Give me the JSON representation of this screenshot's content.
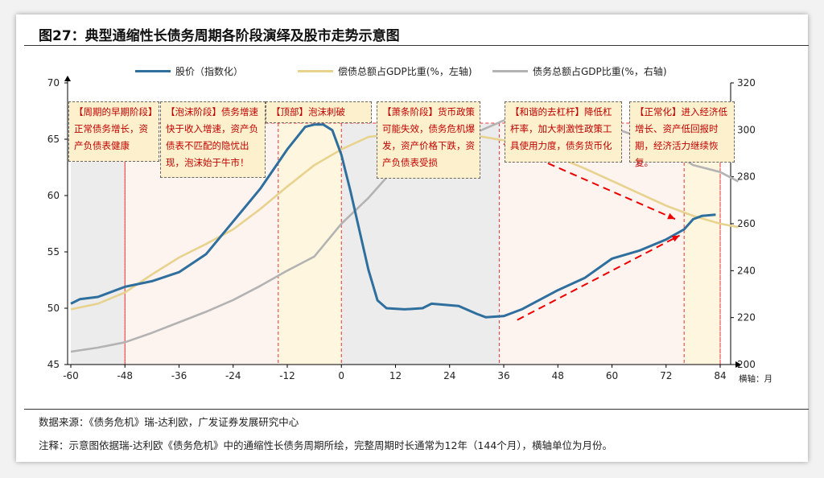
{
  "title": "图27：典型通缩性长债务周期各阶段演绎及股市走势示意图",
  "source": "数据来源：《债务危机》瑞-达利欧，广发证券发展研究中心",
  "note": "注释：示意图依据瑞-达利欧《债务危机》中的通缩性长债务周期所绘，完整周期时长通常为12年（144个月），横轴单位为月份。",
  "annotations": [
    "【周期的早期阶段】正常债务增长，资产负债表健康",
    "【泡沫阶段】债务增速快于收入增速，资产负债表不匹配的隐忧出现，泡沫始于牛市！",
    "【顶部】泡沫刺破",
    "【萧条阶段】货币政策可能失效，债务危机爆发，资产价格下跌，资产负债表受损",
    "【和谐的去杠杆】降低杠杆率，加大刺激性政策工具使用力度，债务货币化",
    "【正常化】进入经济低增长、资产低回报时期，经济活力继续恢复。"
  ],
  "chart_data": {
    "type": "line",
    "title": "",
    "xlabel": "横轴：月",
    "x_ticks": [
      -60,
      -48,
      -36,
      -24,
      -12,
      0,
      12,
      24,
      36,
      48,
      60,
      72,
      84
    ],
    "xlim": [
      -60,
      84
    ],
    "y_left": {
      "lim": [
        45,
        70
      ],
      "ticks": [
        45,
        50,
        55,
        60,
        65,
        70
      ]
    },
    "y_right": {
      "lim": [
        200,
        320
      ],
      "ticks": [
        200,
        220,
        240,
        260,
        280,
        300,
        320
      ]
    },
    "legend_position": "top",
    "phases": [
      {
        "from": -60,
        "to": -48,
        "color": "#ececec"
      },
      {
        "from": -48,
        "to": -14,
        "color": "#fdf3ef"
      },
      {
        "from": -14,
        "to": 0,
        "color": "#fff6df"
      },
      {
        "from": 0,
        "to": 35,
        "color": "#ececec"
      },
      {
        "from": 35,
        "to": 76,
        "color": "#fdf3ef"
      },
      {
        "from": 76,
        "to": 84,
        "color": "#fff6df"
      }
    ],
    "series": [
      {
        "name": "股价（指数化）",
        "axis": "left",
        "color": "#2e6f9e",
        "x": [
          -60,
          -58,
          -54,
          -48,
          -42,
          -36,
          -30,
          -24,
          -18,
          -12,
          -8,
          -6,
          -4,
          -2,
          0,
          2,
          4,
          6,
          8,
          10,
          14,
          18,
          20,
          26,
          30,
          32,
          36,
          40,
          48,
          54,
          60,
          66,
          72,
          76,
          78,
          80,
          83
        ],
        "y": [
          50.4,
          50.8,
          51.0,
          51.9,
          52.4,
          53.2,
          54.8,
          57.7,
          60.6,
          64.1,
          66.1,
          66.3,
          66.3,
          65.8,
          63.6,
          60.4,
          56.9,
          53.4,
          50.7,
          50.0,
          49.9,
          50.0,
          50.4,
          50.2,
          49.5,
          49.2,
          49.3,
          49.9,
          51.6,
          52.7,
          54.4,
          55.1,
          56.1,
          57.0,
          57.9,
          58.2,
          58.3
        ]
      },
      {
        "name": "偿债总额占GDP比重(%，左轴)",
        "axis": "left",
        "color": "#e8d38e",
        "x": [
          -60,
          -54,
          -48,
          -42,
          -36,
          -30,
          -24,
          -18,
          -12,
          -6,
          0,
          6,
          12,
          18,
          24,
          30,
          36,
          42,
          48,
          54,
          60,
          66,
          72,
          78,
          84,
          88
        ],
        "y": [
          49.9,
          50.4,
          51.4,
          53.0,
          54.5,
          55.7,
          57.0,
          58.8,
          60.8,
          62.7,
          64.1,
          65.2,
          65.5,
          65.6,
          65.5,
          65.3,
          64.9,
          64.2,
          63.4,
          62.4,
          61.3,
          60.2,
          59.1,
          58.2,
          57.5,
          57.2
        ]
      },
      {
        "name": "债务总额占GDP比重(%，右轴)",
        "axis": "right",
        "color": "#b3b3b3",
        "x": [
          -60,
          -54,
          -48,
          -42,
          -36,
          -30,
          -24,
          -18,
          -12,
          -6,
          0,
          6,
          12,
          18,
          24,
          30,
          36,
          40,
          48,
          54,
          60,
          66,
          72,
          78,
          84,
          88
        ],
        "y": [
          205.5,
          207.2,
          209.5,
          213.5,
          218,
          222.5,
          227.5,
          233.5,
          240,
          246,
          260,
          271,
          284,
          290,
          291,
          299,
          304,
          306.6,
          306.3,
          304,
          301,
          297,
          292,
          285,
          282,
          278
        ]
      }
    ],
    "arrows": [
      {
        "from": [
          36,
          294
        ],
        "to": [
          74,
          262
        ],
        "axis": "right"
      },
      {
        "from": [
          39,
          219
        ],
        "to": [
          75,
          255
        ],
        "axis": "right"
      }
    ]
  }
}
